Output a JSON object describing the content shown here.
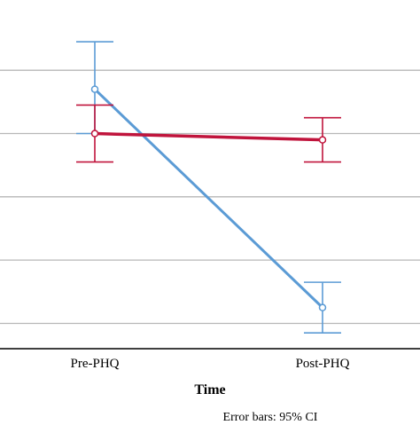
{
  "chart_data": {
    "type": "line",
    "title": "",
    "xlabel": "Time",
    "ylabel": "",
    "categories": [
      "Pre-PHQ",
      "Post-PHQ"
    ],
    "grid": true,
    "ylim": [
      0,
      5.3
    ],
    "gridlines": [
      0.4,
      1.4,
      2.4,
      3.4,
      4.4
    ],
    "footnote": "Error bars: 95% CI",
    "series": [
      {
        "color": "#5b9bd5",
        "values": [
          4.1,
          0.65
        ],
        "ci_low": [
          3.4,
          0.25
        ],
        "ci_high": [
          4.85,
          1.05
        ]
      },
      {
        "color": "#c0143c",
        "values": [
          3.4,
          3.3
        ],
        "ci_low": [
          2.95,
          2.95
        ],
        "ci_high": [
          3.85,
          3.65
        ]
      }
    ]
  }
}
